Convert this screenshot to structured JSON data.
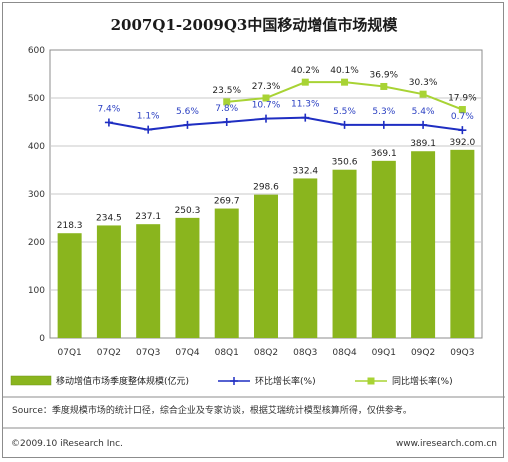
{
  "chart_data": {
    "type": "bar",
    "title": "2007Q1-2009Q3中国移动增值市场规模",
    "categories": [
      "07Q1",
      "07Q2",
      "07Q3",
      "07Q4",
      "08Q1",
      "08Q2",
      "08Q3",
      "08Q4",
      "09Q1",
      "09Q2",
      "09Q3"
    ],
    "ylim": [
      0,
      600
    ],
    "yticks": [
      0,
      100,
      200,
      300,
      400,
      500,
      600
    ],
    "grid": true,
    "legend_position": "bottom",
    "series": [
      {
        "name": "移动增值市场季度整体规模(亿元)",
        "kind": "bar",
        "color": "#8ab51e",
        "values": [
          218.3,
          234.5,
          237.1,
          250.3,
          269.7,
          298.6,
          332.4,
          350.6,
          369.1,
          389.1,
          392.0
        ],
        "labels": [
          "218.3",
          "234.5",
          "237.1",
          "250.3",
          "269.7",
          "298.6",
          "332.4",
          "350.6",
          "369.1",
          "389.1",
          "392.0"
        ]
      },
      {
        "name": "环比增长率(%)",
        "kind": "line",
        "color": "#1f2ec2",
        "values": [
          null,
          7.4,
          1.1,
          5.6,
          7.8,
          10.7,
          11.3,
          5.5,
          5.3,
          5.4,
          0.7
        ],
        "labels": [
          "",
          "7.4%",
          "1.1%",
          "5.6%",
          "7.8%",
          "10.7%",
          "11.3%",
          "5.5%",
          "5.3%",
          "5.4%",
          "0.7%"
        ],
        "plot_y": [
          null,
          449,
          434,
          444,
          450,
          457,
          459,
          444,
          444,
          444,
          433
        ]
      },
      {
        "name": "同比增长率(%)",
        "kind": "line",
        "color": "#a8d334",
        "values": [
          null,
          null,
          null,
          null,
          23.5,
          27.3,
          40.2,
          40.1,
          36.9,
          30.3,
          17.9
        ],
        "labels": [
          "",
          "",
          "",
          "",
          "23.5%",
          "27.3%",
          "40.2%",
          "40.1%",
          "36.9%",
          "30.3%",
          "17.9%"
        ],
        "plot_y": [
          null,
          null,
          null,
          null,
          492,
          500,
          533,
          533,
          524,
          508,
          476
        ]
      }
    ]
  },
  "footer": {
    "source": "Source：季度规模市场的统计口径，综合企业及专家访谈，根据艾瑞统计模型核算所得，仅供参考。",
    "copyright": "©2009.10 iResearch Inc.",
    "website": "www.iresearch.com.cn"
  }
}
